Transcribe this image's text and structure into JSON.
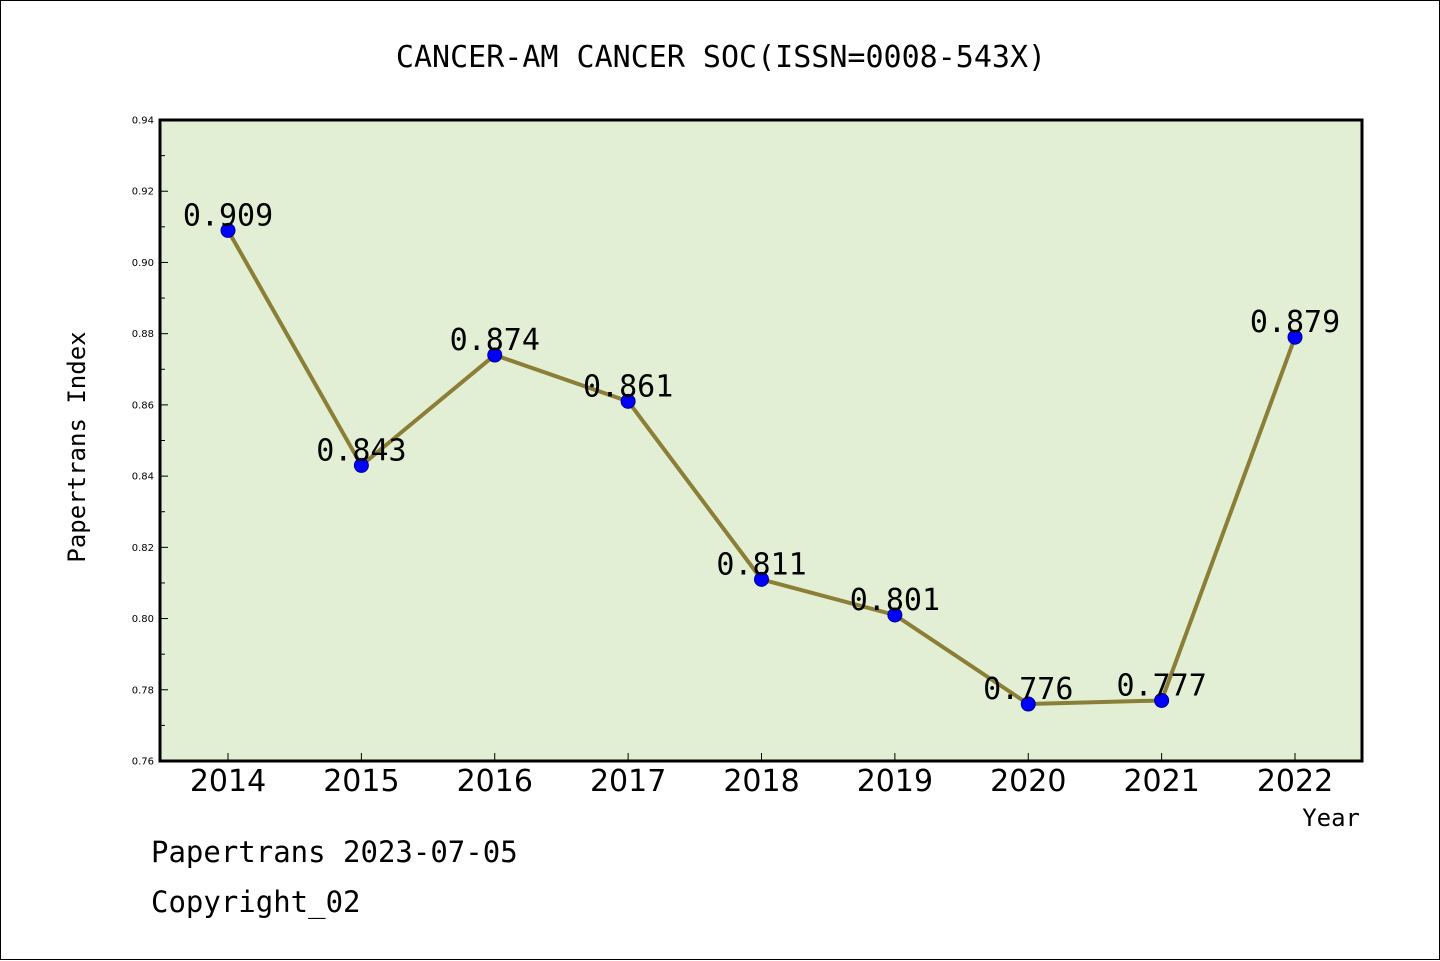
{
  "footer": {
    "line1": "Papertrans 2023-07-05",
    "line2": "Copyright_02"
  },
  "chart_data": {
    "type": "line",
    "title": "CANCER-AM CANCER SOC(ISSN=0008-543X)",
    "xlabel": "Year",
    "ylabel": "Papertrans Index",
    "categories": [
      "2014",
      "2015",
      "2016",
      "2017",
      "2018",
      "2019",
      "2020",
      "2021",
      "2022"
    ],
    "values": [
      0.909,
      0.843,
      0.874,
      0.861,
      0.811,
      0.801,
      0.776,
      0.777,
      0.879
    ],
    "data_labels": [
      "0.909",
      "0.843",
      "0.874",
      "0.861",
      "0.811",
      "0.801",
      "0.776",
      "0.777",
      "0.879"
    ],
    "ylim": [
      0.76,
      0.94
    ],
    "yticks": [
      "0.76",
      "0.78",
      "0.80",
      "0.82",
      "0.84",
      "0.86",
      "0.88",
      "0.90",
      "0.92",
      "0.94"
    ],
    "grid": false,
    "colors": {
      "plot_background": "#e2efd5",
      "line": "#8b7e36",
      "marker": "#0000ff"
    }
  }
}
